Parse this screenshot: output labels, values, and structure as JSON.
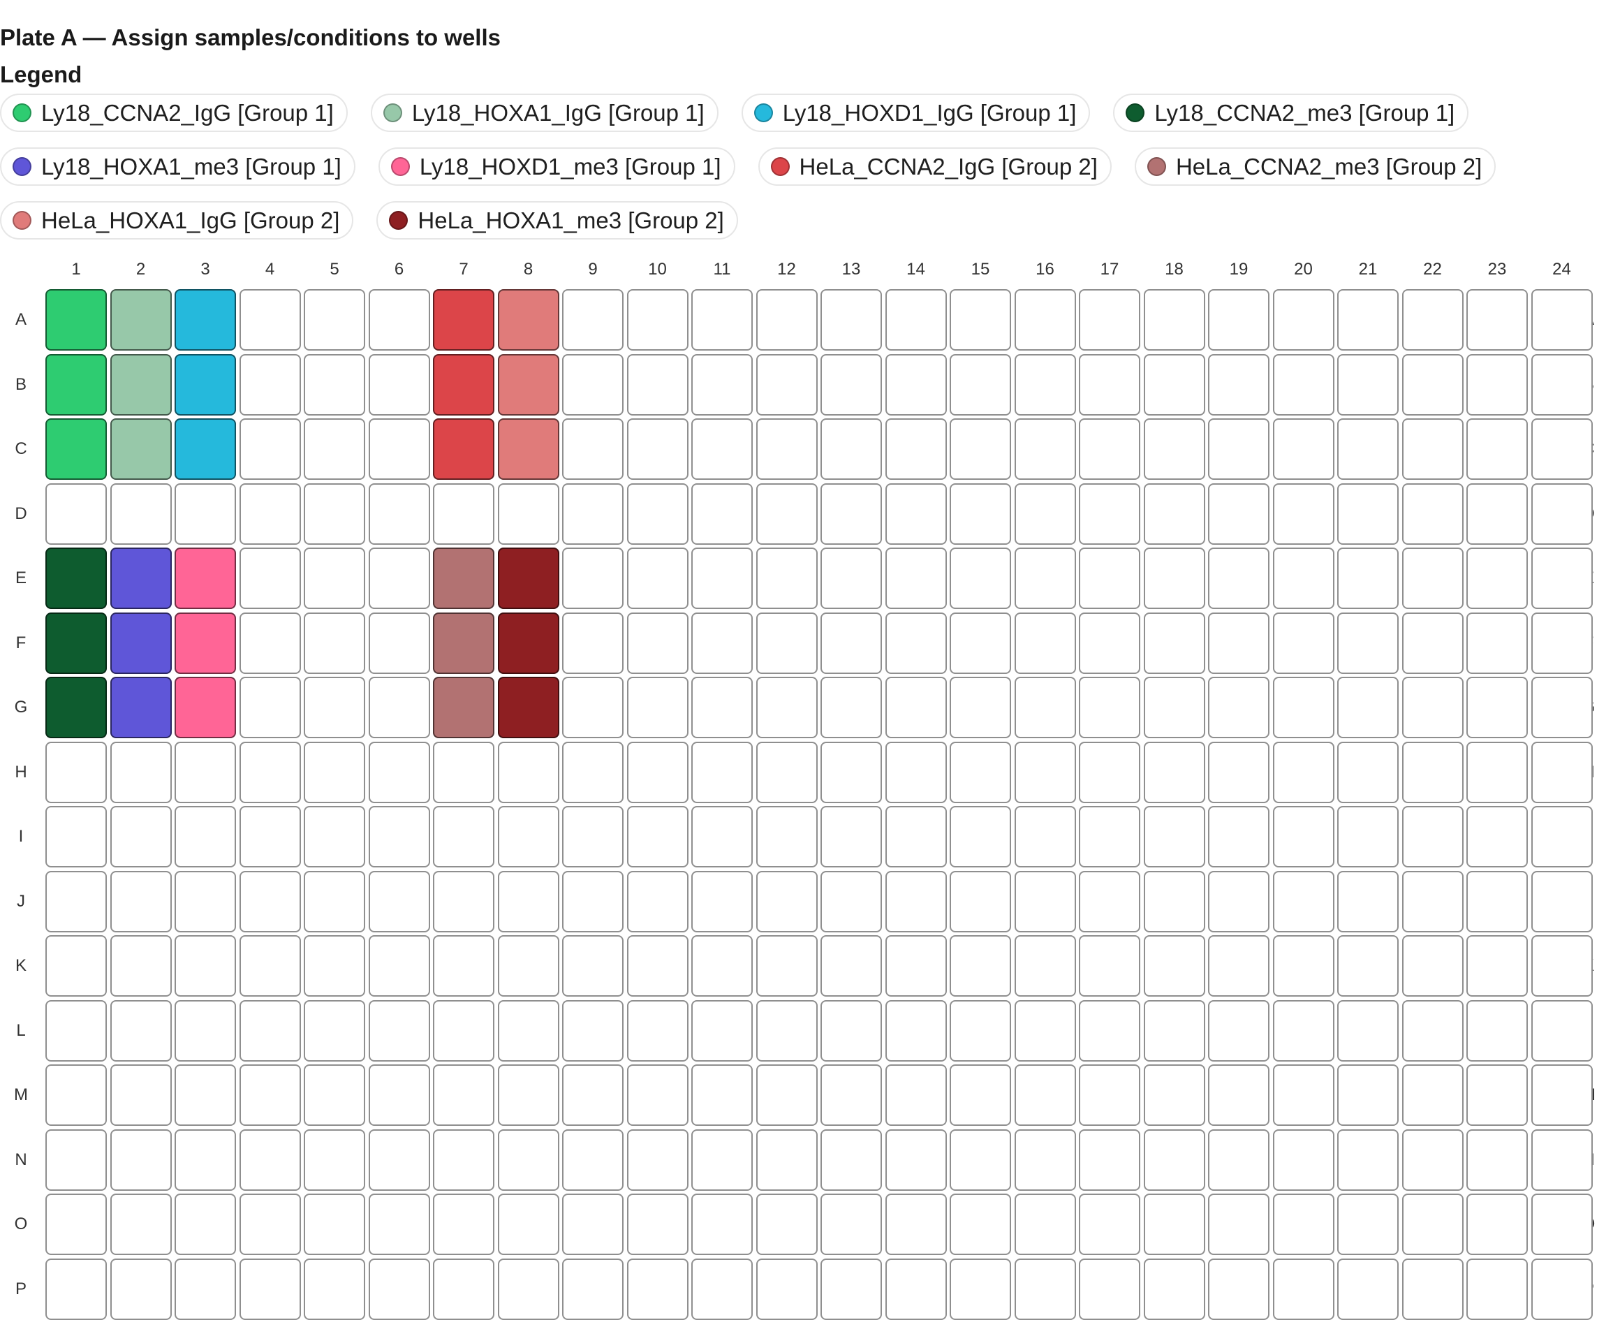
{
  "plate": {
    "title": "Plate A — Assign samples/conditions to wells"
  },
  "legend": {
    "title": "Legend",
    "items": [
      {
        "id": "ly18_ccna2_igg",
        "label": "Ly18_CCNA2_IgG [Group 1]",
        "color": "#2ecc71"
      },
      {
        "id": "ly18_hoxa1_igg",
        "label": "Ly18_HOXA1_IgG [Group 1]",
        "color": "#97c8a9"
      },
      {
        "id": "ly18_hoxd1_igg",
        "label": "Ly18_HOXD1_IgG [Group 1]",
        "color": "#25b9dc"
      },
      {
        "id": "ly18_ccna2_me3",
        "label": "Ly18_CCNA2_me3 [Group 1]",
        "color": "#0e5c2f"
      },
      {
        "id": "ly18_hoxa1_me3",
        "label": "Ly18_HOXA1_me3 [Group 1]",
        "color": "#5f56d8"
      },
      {
        "id": "ly18_hoxd1_me3",
        "label": "Ly18_HOXD1_me3 [Group 1]",
        "color": "#ff6596"
      },
      {
        "id": "hela_ccna2_igg",
        "label": "HeLa_CCNA2_IgG [Group 2]",
        "color": "#dc4549"
      },
      {
        "id": "hela_ccna2_me3",
        "label": "HeLa_CCNA2_me3 [Group 2]",
        "color": "#b27272"
      },
      {
        "id": "hela_hoxa1_igg",
        "label": "HeLa_HOXA1_IgG [Group 2]",
        "color": "#e07b7a"
      },
      {
        "id": "hela_hoxa1_me3",
        "label": "HeLa_HOXA1_me3 [Group 2]",
        "color": "#8e1f22"
      }
    ]
  },
  "grid": {
    "columns": [
      "1",
      "2",
      "3",
      "4",
      "5",
      "6",
      "7",
      "8",
      "9",
      "10",
      "11",
      "12",
      "13",
      "14",
      "15",
      "16",
      "17",
      "18",
      "19",
      "20",
      "21",
      "22",
      "23",
      "24"
    ],
    "rows": [
      "A",
      "B",
      "C",
      "D",
      "E",
      "F",
      "G",
      "H",
      "I",
      "J",
      "K",
      "L",
      "M",
      "N",
      "O",
      "P"
    ],
    "empty_color": "#ffffff",
    "assignments": {
      "A1": "ly18_ccna2_igg",
      "B1": "ly18_ccna2_igg",
      "C1": "ly18_ccna2_igg",
      "A2": "ly18_hoxa1_igg",
      "B2": "ly18_hoxa1_igg",
      "C2": "ly18_hoxa1_igg",
      "A3": "ly18_hoxd1_igg",
      "B3": "ly18_hoxd1_igg",
      "C3": "ly18_hoxd1_igg",
      "A7": "hela_ccna2_igg",
      "B7": "hela_ccna2_igg",
      "C7": "hela_ccna2_igg",
      "A8": "hela_hoxa1_igg",
      "B8": "hela_hoxa1_igg",
      "C8": "hela_hoxa1_igg",
      "E1": "ly18_ccna2_me3",
      "F1": "ly18_ccna2_me3",
      "G1": "ly18_ccna2_me3",
      "E2": "ly18_hoxa1_me3",
      "F2": "ly18_hoxa1_me3",
      "G2": "ly18_hoxa1_me3",
      "E3": "ly18_hoxd1_me3",
      "F3": "ly18_hoxd1_me3",
      "G3": "ly18_hoxd1_me3",
      "E7": "hela_ccna2_me3",
      "F7": "hela_ccna2_me3",
      "G7": "hela_ccna2_me3",
      "E8": "hela_hoxa1_me3",
      "F8": "hela_hoxa1_me3",
      "G8": "hela_hoxa1_me3"
    }
  }
}
